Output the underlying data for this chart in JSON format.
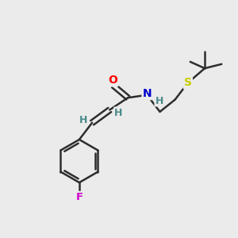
{
  "background_color": "#ebebeb",
  "bond_color": "#2d2d2d",
  "atom_colors": {
    "O": "#ff0000",
    "N": "#0000cd",
    "S": "#cccc00",
    "F": "#cc00cc",
    "H_vinyl": "#4a8a8a",
    "C": "#2d2d2d",
    "H": "#2d2d2d"
  },
  "figsize": [
    3.0,
    3.0
  ],
  "dpi": 100
}
